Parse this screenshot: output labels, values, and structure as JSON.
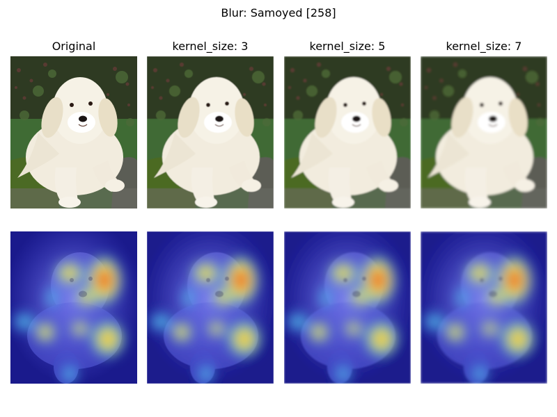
{
  "figure": {
    "suptitle": "Blur: Samoyed [258]"
  },
  "columns": [
    {
      "title": "Original",
      "kernel_size": null
    },
    {
      "title": "kernel_size: 3",
      "kernel_size": 3
    },
    {
      "title": "kernel_size: 5",
      "kernel_size": 5
    },
    {
      "title": "kernel_size: 7",
      "kernel_size": 7
    }
  ],
  "rows": [
    {
      "kind": "image",
      "content": "puppy photo"
    },
    {
      "kind": "heatmap-overlay",
      "content": "saliency heatmap"
    }
  ],
  "colors": {
    "grass": "#3f6b34",
    "foliage": "#2e3a22",
    "fur": "#f4efe2",
    "moss": "#4b6a24",
    "heat_background": "#1a1a8c",
    "heat_cool": "#3fe0e0",
    "heat_warm": "#f0d040",
    "heat_hot": "#e03030"
  }
}
